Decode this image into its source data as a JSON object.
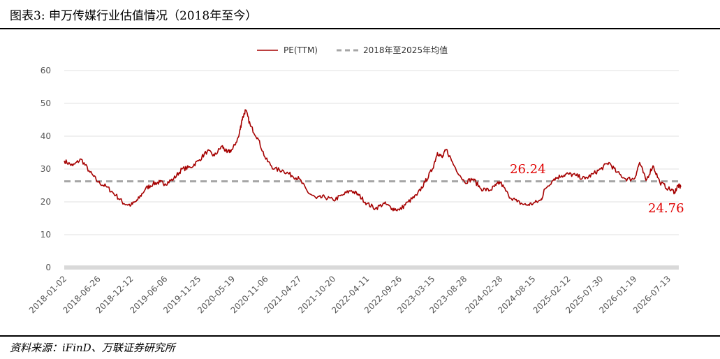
{
  "header": {
    "title": "图表3:  申万传媒行业估值情况（2018年至今）"
  },
  "footer": {
    "source": "资料来源：iFinD、万联证券研究所"
  },
  "chart_data": {
    "type": "line",
    "ylim": [
      0,
      60
    ],
    "yticks": [
      0,
      10,
      20,
      30,
      40,
      50,
      60
    ],
    "grid": true,
    "legend_position": "top",
    "x_tick_labels": [
      "2018-01-02",
      "2018-06-26",
      "2018-12-12",
      "2019-06-06",
      "2019-11-25",
      "2020-05-19",
      "2020-11-06",
      "2021-04-27",
      "2021-10-20",
      "2022-04-11",
      "2022-09-26",
      "2023-03-15",
      "2023-08-28",
      "2024-02-28",
      "2024-08-15",
      "2025-02-12",
      "2025-07-30",
      "2026-01-19",
      "2026-07-13"
    ],
    "series": [
      {
        "name": "PE(TTM)",
        "color": "#a50000",
        "x": [
          "2018-01-02",
          "2018-02-15",
          "2018-03-30",
          "2018-05-15",
          "2018-06-26",
          "2018-08-10",
          "2018-09-25",
          "2018-11-05",
          "2018-12-12",
          "2019-01-15",
          "2019-02-25",
          "2019-04-05",
          "2019-05-10",
          "2019-06-06",
          "2019-07-20",
          "2019-09-01",
          "2019-10-15",
          "2019-11-25",
          "2020-01-10",
          "2020-02-15",
          "2020-03-25",
          "2020-04-20",
          "2020-05-19",
          "2020-06-20",
          "2020-07-06",
          "2020-07-25",
          "2020-08-20",
          "2020-09-25",
          "2020-11-06",
          "2020-12-20",
          "2021-02-05",
          "2021-03-20",
          "2021-04-27",
          "2021-06-10",
          "2021-07-25",
          "2021-09-05",
          "2021-10-20",
          "2021-12-05",
          "2022-01-20",
          "2022-03-01",
          "2022-04-11",
          "2022-05-25",
          "2022-07-10",
          "2022-08-20",
          "2022-09-26",
          "2022-11-10",
          "2022-12-25",
          "2023-02-05",
          "2023-03-15",
          "2023-04-10",
          "2023-05-05",
          "2023-05-25",
          "2023-07-05",
          "2023-08-28",
          "2023-10-10",
          "2023-11-20",
          "2024-01-05",
          "2024-02-05",
          "2024-02-28",
          "2024-04-10",
          "2024-05-25",
          "2024-07-10",
          "2024-08-15",
          "2024-09-25",
          "2024-10-15",
          "2024-12-01",
          "2025-01-10",
          "2025-02-12",
          "2025-03-25",
          "2025-05-10",
          "2025-06-20",
          "2025-07-30",
          "2025-09-10",
          "2025-10-20",
          "2025-12-05",
          "2026-01-19",
          "2026-02-15",
          "2026-03-20",
          "2026-04-25",
          "2026-05-30",
          "2026-07-13",
          "2026-08-15",
          "2026-09-01",
          "2026-09-15"
        ],
        "values": [
          32.5,
          31,
          33,
          29,
          26,
          24.5,
          22,
          19.5,
          19,
          20.5,
          24,
          25.5,
          26,
          25.5,
          27,
          30,
          30.5,
          32.5,
          35.5,
          34,
          37,
          35,
          36,
          40,
          45,
          48,
          43,
          39.5,
          33,
          30,
          29.5,
          28,
          27,
          23,
          21,
          21.5,
          20.5,
          22,
          23.5,
          22,
          19.5,
          18,
          19.5,
          18,
          17.5,
          20,
          22,
          26,
          30,
          35,
          33.5,
          36,
          31,
          26,
          27,
          24,
          23.5,
          25,
          26,
          22,
          20,
          19,
          19.5,
          20.5,
          24,
          27,
          28,
          28.5,
          28,
          27,
          28.5,
          30,
          32,
          29,
          27,
          27,
          32,
          26.5,
          31,
          26,
          24,
          23,
          25,
          24.5
        ]
      },
      {
        "name": "2018年至2025年均值",
        "color": "#a6a6a6",
        "dashed": true,
        "x": [
          "2018-01-02",
          "2026-09-15"
        ],
        "values": [
          26.24,
          26.24
        ]
      }
    ],
    "annotations": [
      "26.24",
      "24.76"
    ]
  }
}
